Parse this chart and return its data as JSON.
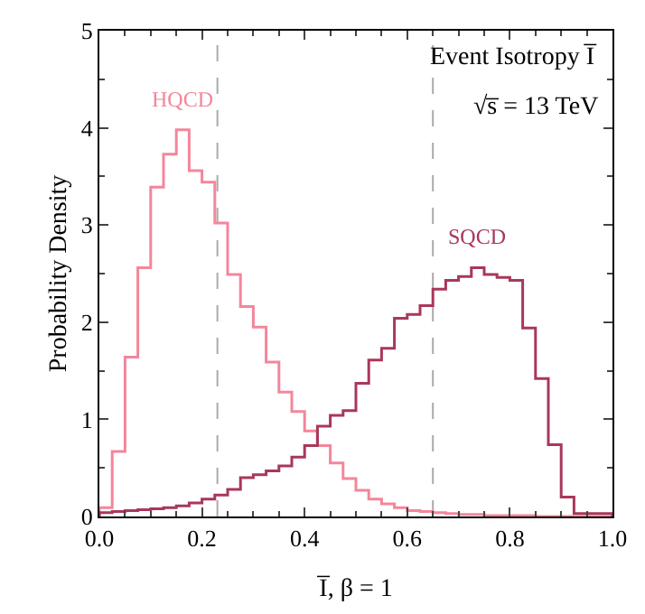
{
  "chart_data": {
    "type": "histogram",
    "xlabel": "I̅, β = 1",
    "ylabel": "Probability Density",
    "bins": [
      0,
      0.025,
      0.05,
      0.075,
      0.1,
      0.125,
      0.15,
      0.175,
      0.2,
      0.225,
      0.25,
      0.275,
      0.3,
      0.325,
      0.35,
      0.375,
      0.4,
      0.425,
      0.45,
      0.475,
      0.5,
      0.525,
      0.55,
      0.575,
      0.6,
      0.625,
      0.65,
      0.675,
      0.7,
      0.725,
      0.75,
      0.775,
      0.8,
      0.825,
      0.85,
      0.875,
      0.9,
      0.925,
      0.95,
      0.975,
      1.0
    ],
    "series": [
      {
        "name": "HQCD",
        "color": "#f4869a",
        "values": [
          0.09,
          0.67,
          1.64,
          2.56,
          3.39,
          3.73,
          3.98,
          3.56,
          3.44,
          3.02,
          2.49,
          2.16,
          1.95,
          1.59,
          1.28,
          1.08,
          0.88,
          0.73,
          0.55,
          0.39,
          0.27,
          0.18,
          0.13,
          0.09,
          0.06,
          0.05,
          0.04,
          0.03,
          0.02,
          0.02,
          0.01,
          0.01,
          0.01,
          0.01,
          0.0,
          0.0,
          0.0,
          0.0,
          0.0,
          0.0
        ]
      },
      {
        "name": "SQCD",
        "color": "#a8385a",
        "values": [
          0.04,
          0.05,
          0.06,
          0.07,
          0.08,
          0.09,
          0.11,
          0.14,
          0.18,
          0.22,
          0.28,
          0.4,
          0.43,
          0.47,
          0.52,
          0.61,
          0.73,
          0.93,
          1.04,
          1.09,
          1.37,
          1.61,
          1.73,
          2.04,
          2.08,
          2.17,
          2.34,
          2.43,
          2.47,
          2.56,
          2.49,
          2.46,
          2.43,
          1.94,
          1.42,
          0.74,
          0.2,
          0.03,
          0.03,
          0.03
        ]
      }
    ],
    "annotations": [
      "Event Isotropy I̅",
      "√s̅ = 13 TeV"
    ],
    "ref_lines": [
      {
        "axis": "x",
        "value": 0.23,
        "color": "#aaaaaa",
        "line_style": "dashed"
      },
      {
        "axis": "x",
        "value": 0.65,
        "color": "#aaaaaa",
        "line_style": "dashed"
      }
    ],
    "xlim": [
      0,
      1.0
    ],
    "xticks": [
      {
        "value": 0,
        "label": "0.0"
      },
      0.2,
      0.4,
      0.6,
      0.8,
      {
        "value": 1.0,
        "label": "1.0"
      }
    ],
    "ylim": [
      0,
      5
    ],
    "yticks": [
      0,
      1,
      2,
      3,
      4,
      5
    ],
    "grid": false,
    "legend": false
  }
}
